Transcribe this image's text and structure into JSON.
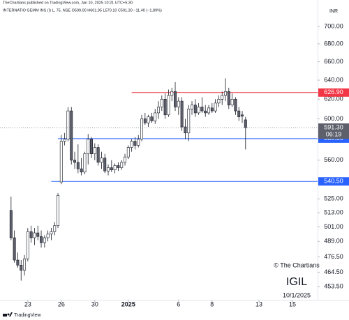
{
  "chart_data": {
    "type": "candlestick",
    "attribution": "TheChartians published on TradingView.com, Jan 10, 2025 10:21 UTC+5:30",
    "symbol_line": "INTERNATIO GEMM INS (I) L, 75, NSE  O599.00  H601.95  L570.10  C591.30  −11.40 (−1.89%)",
    "currency": "INR",
    "watermark": [
      "© The Chartians",
      "IGIL",
      "10/1/2025"
    ],
    "footer": "TradingView",
    "log_scale": true,
    "up_color": "#ffffff",
    "down_color": "#5d606b",
    "border_color": "#131722",
    "x": [
      0,
      1,
      2,
      3,
      4,
      5,
      6,
      7,
      8,
      9,
      10,
      11,
      12,
      13,
      14,
      15,
      16,
      17,
      18,
      19,
      20,
      21,
      22,
      23,
      24,
      25,
      26,
      27,
      28,
      29,
      30,
      31,
      32,
      33,
      34,
      35,
      36,
      37,
      38,
      39,
      40,
      41,
      42,
      43,
      44,
      45,
      46,
      47,
      48,
      49,
      50,
      51,
      52,
      53,
      54,
      55,
      56,
      57,
      58,
      59,
      60,
      61,
      62,
      63,
      64,
      65,
      66,
      67,
      68,
      69,
      70
    ],
    "open": [
      515,
      492,
      474,
      470,
      466,
      475,
      497,
      492,
      496,
      493,
      488,
      492,
      495,
      497,
      502,
      540,
      578,
      580,
      608,
      560,
      558,
      552,
      549,
      566,
      580,
      566,
      572,
      558,
      562,
      550,
      553,
      551,
      555,
      553,
      558,
      563,
      572,
      578,
      574,
      580,
      600,
      596,
      602,
      598,
      606,
      612,
      620,
      604,
      624,
      628,
      612,
      618,
      592,
      586,
      610,
      614,
      606,
      612,
      608,
      606,
      611,
      608,
      616,
      620,
      624,
      628,
      614,
      620,
      608,
      604,
      599
    ],
    "high": [
      527,
      498,
      480,
      474,
      478,
      500,
      502,
      500,
      502,
      498,
      494,
      498,
      500,
      505,
      530,
      584,
      586,
      612,
      612,
      568,
      575,
      562,
      568,
      585,
      582,
      576,
      575,
      568,
      566,
      556,
      560,
      557,
      558,
      560,
      566,
      574,
      580,
      582,
      584,
      604,
      606,
      604,
      606,
      610,
      618,
      624,
      626,
      630,
      632,
      638,
      622,
      622,
      600,
      614,
      618,
      620,
      616,
      622,
      614,
      614,
      616,
      620,
      624,
      628,
      642,
      632,
      626,
      622,
      612,
      608,
      601.95
    ],
    "low": [
      490,
      472,
      468,
      458,
      462,
      473,
      488,
      486,
      490,
      484,
      484,
      489,
      490,
      494,
      500,
      538,
      574,
      578,
      556,
      552,
      548,
      546,
      547,
      556,
      562,
      560,
      555,
      552,
      548,
      546,
      549,
      548,
      550,
      551,
      555,
      561,
      568,
      570,
      572,
      578,
      594,
      592,
      596,
      595,
      600,
      608,
      600,
      602,
      618,
      608,
      604,
      588,
      580,
      578,
      604,
      602,
      604,
      606,
      602,
      604,
      606,
      606,
      612,
      614,
      618,
      610,
      612,
      604,
      598,
      596,
      570.1
    ],
    "close": [
      492,
      474,
      470,
      466,
      475,
      497,
      492,
      496,
      493,
      488,
      492,
      495,
      497,
      502,
      528,
      578,
      580,
      608,
      560,
      558,
      552,
      549,
      566,
      580,
      566,
      572,
      558,
      562,
      550,
      553,
      551,
      555,
      553,
      558,
      563,
      572,
      578,
      574,
      580,
      600,
      596,
      602,
      598,
      606,
      612,
      620,
      604,
      624,
      628,
      612,
      618,
      592,
      586,
      610,
      614,
      606,
      612,
      608,
      606,
      611,
      608,
      616,
      620,
      624,
      628,
      614,
      620,
      608,
      602,
      602.7,
      591.3
    ],
    "xlim": [
      -3.3,
      91.5
    ],
    "xticks": [
      {
        "value": 5,
        "label": "23"
      },
      {
        "value": 15,
        "label": "26"
      },
      {
        "value": 25,
        "label": "30"
      },
      {
        "value": 35,
        "label": "2025"
      },
      {
        "value": 50,
        "label": "6"
      },
      {
        "value": 60,
        "label": "8"
      },
      {
        "value": 74,
        "label": "13"
      },
      {
        "value": 84,
        "label": "15"
      }
    ],
    "ylim": [
      443.6,
      719
    ],
    "yticks": [
      {
        "value": 700,
        "label": "700.00"
      },
      {
        "value": 680,
        "label": "680.00"
      },
      {
        "value": 660,
        "label": "660.00"
      },
      {
        "value": 640,
        "label": "640.00"
      },
      {
        "value": 620,
        "label": "620.00"
      },
      {
        "value": 600,
        "label": "600.00"
      },
      {
        "value": 560,
        "label": "560.00"
      },
      {
        "value": 525,
        "label": "525.00"
      },
      {
        "value": 513,
        "label": "513.00"
      },
      {
        "value": 501,
        "label": "501.00"
      },
      {
        "value": 489,
        "label": "489.00"
      },
      {
        "value": 476.5,
        "label": "476.50"
      },
      {
        "value": 464.5,
        "label": "464.50"
      },
      {
        "value": 453.5,
        "label": "453.50"
      }
    ],
    "levels": [
      {
        "value": 626.9,
        "label": "626.90",
        "color": "#f23645",
        "from": 36
      },
      {
        "value": 580.5,
        "label": "580.50",
        "color": "#2962ff",
        "from": 14
      },
      {
        "value": 540.5,
        "label": "540.50",
        "color": "#2962ff",
        "from": 12
      }
    ],
    "last_price": {
      "value": 591.3,
      "label": "591.30",
      "countdown": "06:19",
      "color": "#5d606b"
    }
  }
}
